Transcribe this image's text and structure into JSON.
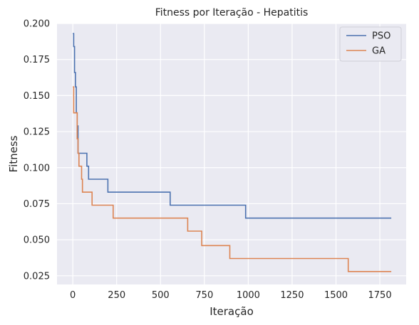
{
  "chart_data": {
    "type": "line",
    "title": "Fitness por Iteração - Hepatitis",
    "xlabel": "Iteração",
    "ylabel": "Fitness",
    "xlim": [
      -90,
      1900
    ],
    "ylim": [
      0.019,
      0.2
    ],
    "xticks": [
      0,
      250,
      500,
      750,
      1000,
      1250,
      1500,
      1750
    ],
    "xtick_labels": [
      "0",
      "250",
      "500",
      "750",
      "1000",
      "1250",
      "1500",
      "1750"
    ],
    "yticks": [
      0.025,
      0.05,
      0.075,
      0.1,
      0.125,
      0.15,
      0.175,
      0.2
    ],
    "ytick_labels": [
      "0.025",
      "0.050",
      "0.075",
      "0.100",
      "0.125",
      "0.150",
      "0.175",
      "0.200"
    ],
    "grid": true,
    "legend_position": "top-right",
    "style": {
      "background": "#EAEAF2",
      "grid_color": "#FFFFFF"
    },
    "series": [
      {
        "name": "PSO",
        "color": "#4C72B0",
        "x": [
          0,
          5,
          10,
          15,
          20,
          25,
          30,
          70,
          80,
          90,
          200,
          555,
          985,
          1815
        ],
        "y": [
          0.193,
          0.184,
          0.166,
          0.156,
          0.138,
          0.129,
          0.11,
          0.11,
          0.101,
          0.092,
          0.083,
          0.074,
          0.065,
          0.065
        ]
      },
      {
        "name": "GA",
        "color": "#DD8452",
        "x": [
          0,
          5,
          25,
          30,
          35,
          50,
          55,
          110,
          230,
          655,
          735,
          895,
          1570,
          1815
        ],
        "y": [
          0.156,
          0.138,
          0.12,
          0.11,
          0.101,
          0.092,
          0.083,
          0.074,
          0.065,
          0.056,
          0.046,
          0.037,
          0.028,
          0.028
        ]
      }
    ]
  }
}
